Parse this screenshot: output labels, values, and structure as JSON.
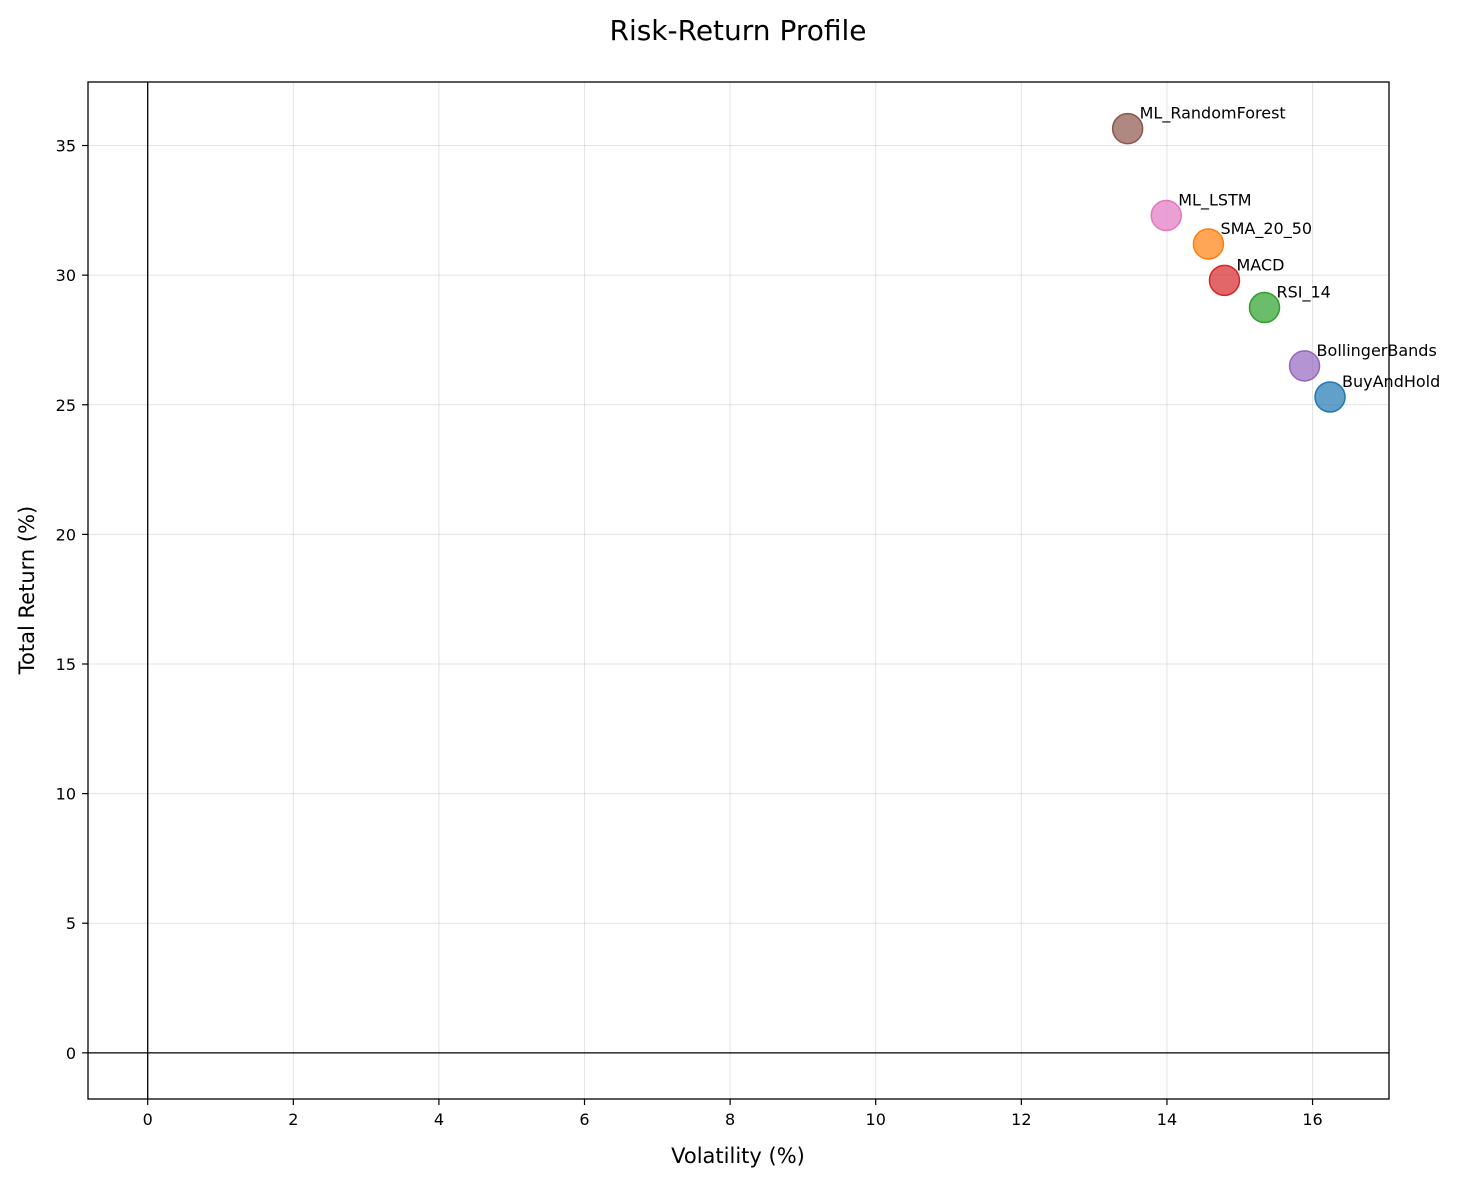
{
  "chart_data": {
    "type": "scatter",
    "title": "Risk-Return Profile",
    "xlabel": "Volatility (%)",
    "ylabel": "Total Return (%)",
    "xlim": [
      -0.82,
      17.05
    ],
    "ylim": [
      -1.78,
      37.45
    ],
    "xticks": [
      0,
      2,
      4,
      6,
      8,
      10,
      12,
      14,
      16
    ],
    "yticks": [
      0,
      5,
      10,
      15,
      20,
      25,
      30,
      35
    ],
    "grid": true,
    "reference_lines": {
      "x": 0,
      "y": 0
    },
    "points": [
      {
        "label": "BuyAndHold",
        "x": 16.24,
        "y": 25.3,
        "color": "#1f77b4"
      },
      {
        "label": "SMA_20_50",
        "x": 14.57,
        "y": 31.2,
        "color": "#ff7f0e"
      },
      {
        "label": "RSI_14",
        "x": 15.34,
        "y": 28.75,
        "color": "#2ca02c"
      },
      {
        "label": "MACD",
        "x": 14.79,
        "y": 29.8,
        "color": "#d62728"
      },
      {
        "label": "BollingerBands",
        "x": 15.89,
        "y": 26.5,
        "color": "#9467bd"
      },
      {
        "label": "ML_RandomForest",
        "x": 13.46,
        "y": 35.65,
        "color": "#8c564b"
      },
      {
        "label": "ML_LSTM",
        "x": 13.99,
        "y": 32.3,
        "color": "#e377c2"
      }
    ]
  }
}
